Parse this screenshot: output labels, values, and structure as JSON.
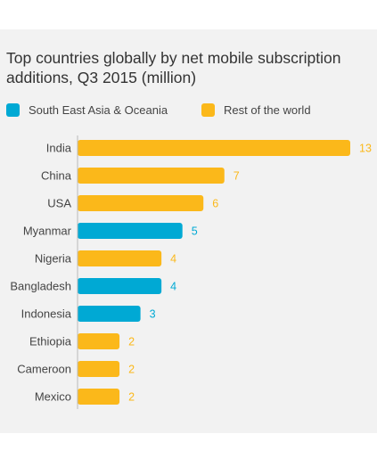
{
  "chart_data": {
    "type": "bar",
    "orientation": "horizontal",
    "title": "Top countries globally by net mobile subscription additions, Q3 2015 (million)",
    "categories": [
      "India",
      "China",
      "USA",
      "Myanmar",
      "Nigeria",
      "Bangladesh",
      "Indonesia",
      "Ethiopia",
      "Cameroon",
      "Mexico"
    ],
    "values": [
      13,
      7,
      6,
      5,
      4,
      4,
      3,
      2,
      2,
      2
    ],
    "groups": [
      "Rest of the world",
      "Rest of the world",
      "Rest of the world",
      "South East Asia & Oceania",
      "Rest of the world",
      "South East Asia & Oceania",
      "South East Asia & Oceania",
      "Rest of the world",
      "Rest of the world",
      "Rest of the world"
    ],
    "legend": [
      {
        "name": "South East Asia & Oceania",
        "color": "#00a9d4"
      },
      {
        "name": "Rest of the world",
        "color": "#fbb81a"
      }
    ],
    "legend_placement": "top-left",
    "xlim": [
      0,
      13
    ],
    "grid": false,
    "data_labels": true
  }
}
